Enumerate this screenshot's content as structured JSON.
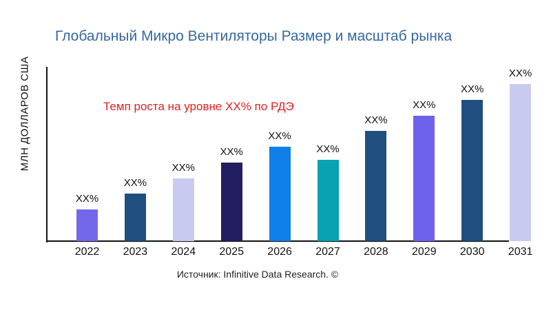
{
  "chart_data": {
    "type": "bar",
    "title": "Глобальный Микро Вентиляторы Размер и масштаб рынка",
    "ylabel": "МЛН ДОЛЛАРОВ США",
    "xlabel": "",
    "annotation": "Темп роста на уровне XX% по РДЭ",
    "source": "Источник: Infinitive Data Research. ©",
    "categories": [
      "2022",
      "2023",
      "2024",
      "2025",
      "2026",
      "2027",
      "2028",
      "2029",
      "2030",
      "2031"
    ],
    "values": [
      18.2,
      27.3,
      36.0,
      45.1,
      54.2,
      46.6,
      63.2,
      71.9,
      81.0,
      90.1
    ],
    "values_note": "relative bar heights in percent of plot height; no numeric y-axis ticks shown",
    "value_labels": [
      "XX%",
      "XX%",
      "XX%",
      "XX%",
      "XX%",
      "XX%",
      "XX%",
      "XX%",
      "XX%",
      "XX%"
    ],
    "bar_colors": [
      "#7468EA",
      "#1F4E7F",
      "#C9CAEF",
      "#231E62",
      "#107FE6",
      "#09A2B2",
      "#1F4E7F",
      "#6E62EC",
      "#1F4E7F",
      "#C9CAEF"
    ],
    "grid": false,
    "legend": false,
    "colors": {
      "title": "#35689E",
      "annotation": "#E02020",
      "axis": "#111111"
    }
  }
}
